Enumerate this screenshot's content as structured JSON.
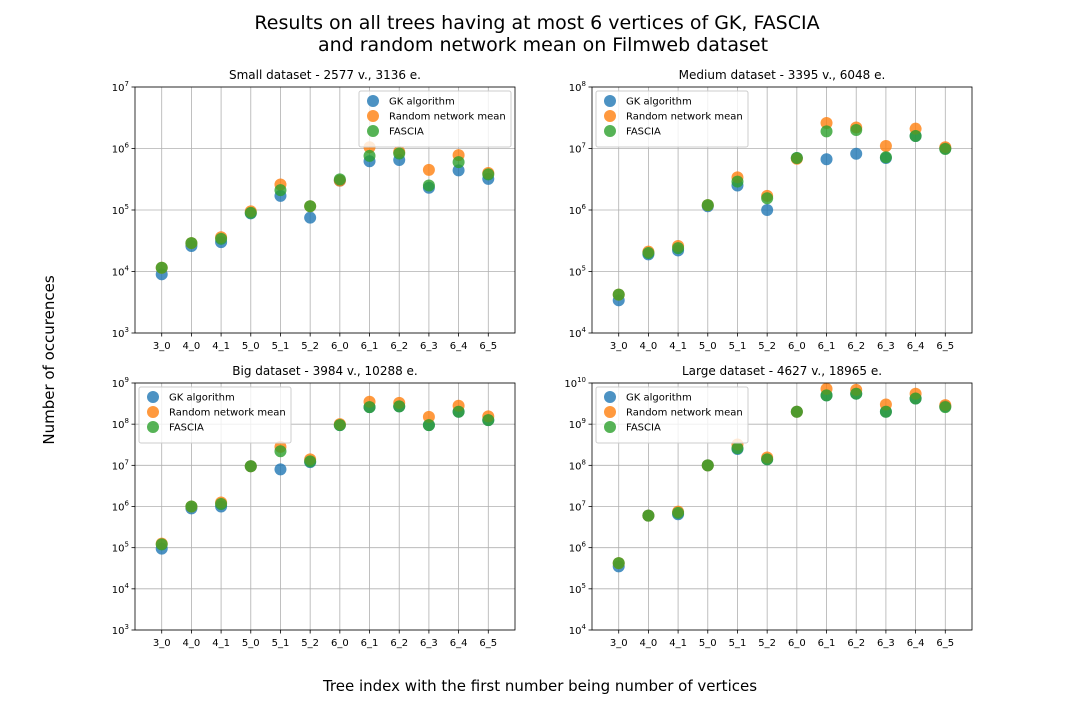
{
  "figure": {
    "title_line1": "Results on all trees having at most 6 vertices of GK, FASCIA",
    "title_line2": "and random network mean on Filmweb dataset",
    "ylabel": "Number of occurences",
    "xlabel": "Tree index with the first number being number of vertices"
  },
  "series_meta": [
    {
      "name": "GK algorithm",
      "color": "#1f77b4"
    },
    {
      "name": "Random network mean",
      "color": "#ff7f0e"
    },
    {
      "name": "FASCIA",
      "color": "#2ca02c"
    }
  ],
  "chart_data": [
    {
      "type": "scatter",
      "title": "Small dataset - 2577 v., 3136 e.",
      "yscale": "log",
      "ylim": [
        1000,
        10000000
      ],
      "ytick_exponents": [
        3,
        4,
        5,
        6,
        7
      ],
      "grid": true,
      "legend": "top-right",
      "categories": [
        "3_0",
        "4_0",
        "4_1",
        "5_0",
        "5_1",
        "5_2",
        "6_0",
        "6_1",
        "6_2",
        "6_3",
        "6_4",
        "6_5"
      ],
      "series": [
        {
          "name": "GK algorithm",
          "values": [
            9000,
            26000,
            30000,
            88000,
            170000,
            75000,
            300000,
            620000,
            650000,
            230000,
            440000,
            320000
          ]
        },
        {
          "name": "Random network mean",
          "values": [
            11500,
            29000,
            36000,
            95000,
            260000,
            115000,
            300000,
            1050000,
            880000,
            450000,
            780000,
            400000
          ]
        },
        {
          "name": "FASCIA",
          "values": [
            11500,
            29000,
            34000,
            90000,
            210000,
            115000,
            315000,
            760000,
            830000,
            250000,
            600000,
            380000
          ]
        }
      ]
    },
    {
      "type": "scatter",
      "title": "Medium dataset - 3395 v., 6048 e.",
      "yscale": "log",
      "ylim": [
        10000,
        100000000
      ],
      "ytick_exponents": [
        4,
        5,
        6,
        7,
        8
      ],
      "grid": true,
      "legend": "top-left",
      "categories": [
        "3_0",
        "4_0",
        "4_1",
        "5_0",
        "5_1",
        "5_2",
        "6_0",
        "6_1",
        "6_2",
        "6_3",
        "6_4",
        "6_5"
      ],
      "series": [
        {
          "name": "GK algorithm",
          "values": [
            34000,
            190000,
            220000,
            1150000,
            2500000,
            1000000,
            7000000,
            6700000,
            8200000,
            7000000,
            16000000,
            10000000
          ]
        },
        {
          "name": "Random network mean",
          "values": [
            42000,
            210000,
            260000,
            1200000,
            3400000,
            1700000,
            6800000,
            26000000,
            22000000,
            11000000,
            21000000,
            10500000
          ]
        },
        {
          "name": "FASCIA",
          "values": [
            42000,
            200000,
            240000,
            1200000,
            2900000,
            1550000,
            7000000,
            19000000,
            20000000,
            7200000,
            16000000,
            9800000
          ]
        }
      ]
    },
    {
      "type": "scatter",
      "title": "Big dataset - 3984 v., 10288 e.",
      "yscale": "log",
      "ylim": [
        1000,
        1000000000
      ],
      "ytick_exponents": [
        3,
        4,
        5,
        6,
        7,
        8,
        9
      ],
      "grid": true,
      "legend": "top-left",
      "categories": [
        "3_0",
        "4_0",
        "4_1",
        "5_0",
        "5_1",
        "5_2",
        "6_0",
        "6_1",
        "6_2",
        "6_3",
        "6_4",
        "6_5"
      ],
      "series": [
        {
          "name": "GK algorithm",
          "values": [
            95000,
            900000,
            1000000,
            9500000,
            8000000,
            12000000,
            95000000,
            260000000,
            270000000,
            95000000,
            200000000,
            125000000
          ]
        },
        {
          "name": "Random network mean",
          "values": [
            125000,
            1000000,
            1250000,
            9500000,
            28000000,
            14000000,
            100000000,
            350000000,
            330000000,
            150000000,
            280000000,
            155000000
          ]
        },
        {
          "name": "FASCIA",
          "values": [
            120000,
            1000000,
            1150000,
            9500000,
            22000000,
            12500000,
            95000000,
            260000000,
            270000000,
            95000000,
            200000000,
            125000000
          ]
        }
      ]
    },
    {
      "type": "scatter",
      "title": "Large dataset - 4627 v., 18965 e.",
      "yscale": "log",
      "ylim": [
        10000,
        10000000000
      ],
      "ytick_exponents": [
        4,
        5,
        6,
        7,
        8,
        9,
        10
      ],
      "grid": true,
      "legend": "top-left",
      "categories": [
        "3_0",
        "4_0",
        "4_1",
        "5_0",
        "5_1",
        "5_2",
        "6_0",
        "6_1",
        "6_2",
        "6_3",
        "6_4",
        "6_5"
      ],
      "series": [
        {
          "name": "GK algorithm",
          "values": [
            350000,
            6000000,
            6500000,
            100000000,
            250000000,
            140000000,
            2000000000,
            5000000000,
            5500000000,
            2000000000,
            4200000000,
            2700000000
          ]
        },
        {
          "name": "Random network mean",
          "values": [
            420000,
            6000000,
            7500000,
            100000000,
            320000000,
            155000000,
            2000000000,
            7200000000,
            6800000000,
            3000000000,
            5500000000,
            2900000000
          ]
        },
        {
          "name": "FASCIA",
          "values": [
            420000,
            6000000,
            7000000,
            100000000,
            260000000,
            140000000,
            2000000000,
            5000000000,
            5500000000,
            2000000000,
            4200000000,
            2600000000
          ]
        }
      ]
    }
  ]
}
